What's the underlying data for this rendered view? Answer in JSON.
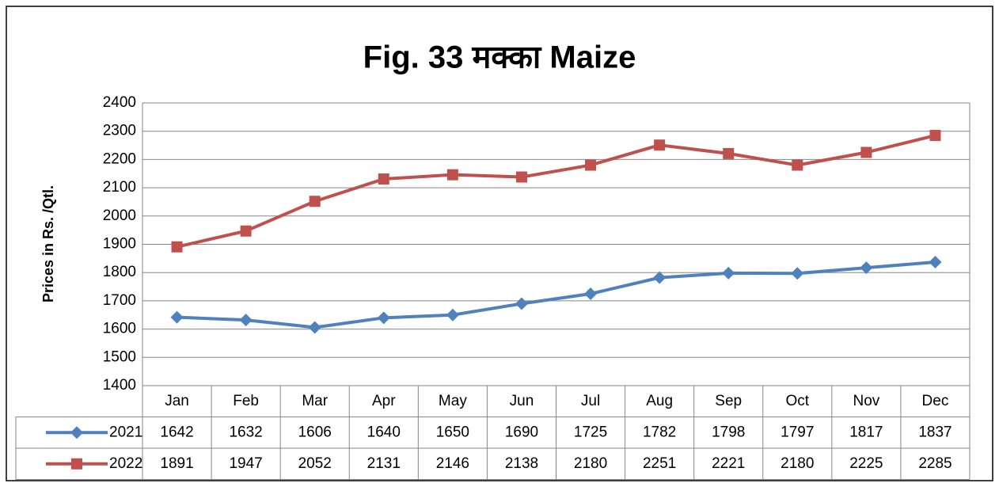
{
  "chart_data": {
    "type": "line",
    "title": "Fig. 33 मक्का Maize",
    "y_label": "Prices in Rs. /Qtl.",
    "categories": [
      "Jan",
      "Feb",
      "Mar",
      "Apr",
      "May",
      "Jun",
      "Jul",
      "Aug",
      "Sep",
      "Oct",
      "Nov",
      "Dec"
    ],
    "series": [
      {
        "name": "2021",
        "color": "#4f81bd",
        "marker": "diamond",
        "values": [
          1642,
          1632,
          1606,
          1640,
          1650,
          1690,
          1725,
          1782,
          1798,
          1797,
          1817,
          1837
        ]
      },
      {
        "name": "2022",
        "color": "#c0504d",
        "marker": "square",
        "values": [
          1891,
          1947,
          2052,
          2131,
          2146,
          2138,
          2180,
          2251,
          2221,
          2180,
          2225,
          2285
        ]
      }
    ],
    "ylim": [
      1400,
      2400
    ],
    "yticks": [
      1400,
      1500,
      1600,
      1700,
      1800,
      1900,
      2000,
      2100,
      2200,
      2300,
      2400
    ],
    "grid": true,
    "data_table": true
  }
}
